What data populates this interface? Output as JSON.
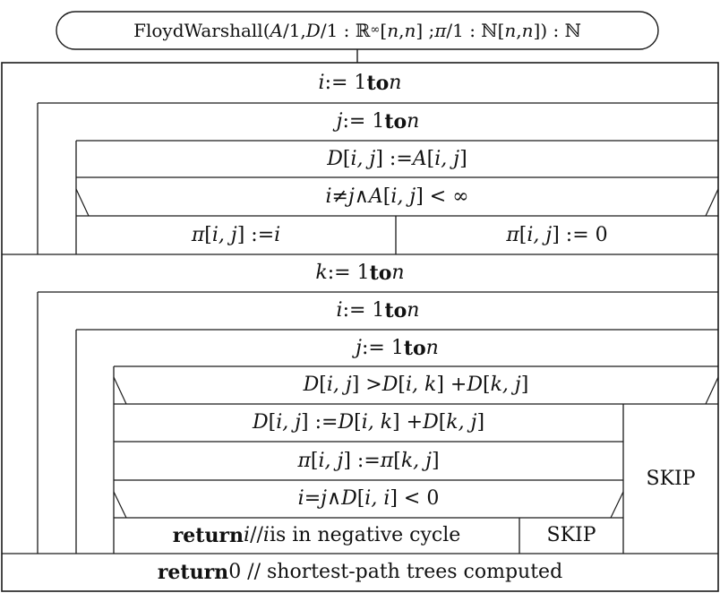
{
  "colors": {
    "line": "#1b1b1b",
    "background": "#ffffff",
    "text": "#111111"
  },
  "signature": {
    "segments": [
      {
        "t": "FloydWarshall(",
        "s": "plain"
      },
      {
        "t": "A",
        "s": "math"
      },
      {
        "t": "/1, ",
        "s": "plain"
      },
      {
        "t": "D",
        "s": "math"
      },
      {
        "t": "/1 : ℝ",
        "s": "plain"
      },
      {
        "t": "∞",
        "s": "sub"
      },
      {
        "t": "[",
        "s": "plain"
      },
      {
        "t": "n",
        "s": "math"
      },
      {
        "t": ", ",
        "s": "plain"
      },
      {
        "t": "n",
        "s": "math"
      },
      {
        "t": "] ; ",
        "s": "plain"
      },
      {
        "t": "π",
        "s": "math"
      },
      {
        "t": "/1 : ℕ[",
        "s": "plain"
      },
      {
        "t": "n",
        "s": "math"
      },
      {
        "t": ", ",
        "s": "plain"
      },
      {
        "t": "n",
        "s": "math"
      },
      {
        "t": "]) : ℕ",
        "s": "plain"
      }
    ]
  },
  "cells": {
    "loop_i_1": {
      "segments": [
        {
          "t": "i",
          "s": "math"
        },
        {
          "t": " := 1 ",
          "s": "plain"
        },
        {
          "t": "to",
          "s": "kw"
        },
        {
          "t": " ",
          "s": "plain"
        },
        {
          "t": "n",
          "s": "math"
        }
      ]
    },
    "loop_j_1": {
      "segments": [
        {
          "t": "j",
          "s": "math"
        },
        {
          "t": " := 1 ",
          "s": "plain"
        },
        {
          "t": "to",
          "s": "kw"
        },
        {
          "t": " ",
          "s": "plain"
        },
        {
          "t": "n",
          "s": "math"
        }
      ]
    },
    "assign_d_a": {
      "segments": [
        {
          "t": "D",
          "s": "math"
        },
        {
          "t": "[",
          "s": "plain"
        },
        {
          "t": "i, j",
          "s": "math"
        },
        {
          "t": "] := ",
          "s": "plain"
        },
        {
          "t": "A",
          "s": "math"
        },
        {
          "t": "[",
          "s": "plain"
        },
        {
          "t": "i, j",
          "s": "math"
        },
        {
          "t": "]",
          "s": "plain"
        }
      ]
    },
    "cond_init": {
      "segments": [
        {
          "t": "i",
          "s": "math"
        },
        {
          "t": " ≠ ",
          "s": "plain"
        },
        {
          "t": "j",
          "s": "math"
        },
        {
          "t": " ∧ ",
          "s": "plain"
        },
        {
          "t": "A",
          "s": "math"
        },
        {
          "t": "[",
          "s": "plain"
        },
        {
          "t": "i, j",
          "s": "math"
        },
        {
          "t": "] < ∞",
          "s": "plain"
        }
      ]
    },
    "pi_set_i": {
      "segments": [
        {
          "t": "π",
          "s": "math"
        },
        {
          "t": "[",
          "s": "plain"
        },
        {
          "t": "i, j",
          "s": "math"
        },
        {
          "t": "] := ",
          "s": "plain"
        },
        {
          "t": "i",
          "s": "math"
        }
      ]
    },
    "pi_set_0": {
      "segments": [
        {
          "t": "π",
          "s": "math"
        },
        {
          "t": "[",
          "s": "plain"
        },
        {
          "t": "i, j",
          "s": "math"
        },
        {
          "t": "] := 0",
          "s": "plain"
        }
      ]
    },
    "loop_k": {
      "segments": [
        {
          "t": "k",
          "s": "math"
        },
        {
          "t": " := 1 ",
          "s": "plain"
        },
        {
          "t": "to",
          "s": "kw"
        },
        {
          "t": " ",
          "s": "plain"
        },
        {
          "t": "n",
          "s": "math"
        }
      ]
    },
    "loop_i_2": {
      "segments": [
        {
          "t": "i",
          "s": "math"
        },
        {
          "t": " := 1 ",
          "s": "plain"
        },
        {
          "t": "to",
          "s": "kw"
        },
        {
          "t": " ",
          "s": "plain"
        },
        {
          "t": "n",
          "s": "math"
        }
      ]
    },
    "loop_j_2": {
      "segments": [
        {
          "t": "j",
          "s": "math"
        },
        {
          "t": " := 1 ",
          "s": "plain"
        },
        {
          "t": "to",
          "s": "kw"
        },
        {
          "t": " ",
          "s": "plain"
        },
        {
          "t": "n",
          "s": "math"
        }
      ]
    },
    "cond_relax": {
      "segments": [
        {
          "t": "D",
          "s": "math"
        },
        {
          "t": "[",
          "s": "plain"
        },
        {
          "t": "i, j",
          "s": "math"
        },
        {
          "t": "] > ",
          "s": "plain"
        },
        {
          "t": "D",
          "s": "math"
        },
        {
          "t": "[",
          "s": "plain"
        },
        {
          "t": "i, k",
          "s": "math"
        },
        {
          "t": "] + ",
          "s": "plain"
        },
        {
          "t": "D",
          "s": "math"
        },
        {
          "t": "[",
          "s": "plain"
        },
        {
          "t": "k, j",
          "s": "math"
        },
        {
          "t": "]",
          "s": "plain"
        }
      ]
    },
    "assign_relax": {
      "segments": [
        {
          "t": "D",
          "s": "math"
        },
        {
          "t": "[",
          "s": "plain"
        },
        {
          "t": "i, j",
          "s": "math"
        },
        {
          "t": "] := ",
          "s": "plain"
        },
        {
          "t": "D",
          "s": "math"
        },
        {
          "t": "[",
          "s": "plain"
        },
        {
          "t": "i, k",
          "s": "math"
        },
        {
          "t": "] + ",
          "s": "plain"
        },
        {
          "t": "D",
          "s": "math"
        },
        {
          "t": "[",
          "s": "plain"
        },
        {
          "t": "k, j",
          "s": "math"
        },
        {
          "t": "]",
          "s": "plain"
        }
      ]
    },
    "assign_pi": {
      "segments": [
        {
          "t": "π",
          "s": "math"
        },
        {
          "t": "[",
          "s": "plain"
        },
        {
          "t": "i, j",
          "s": "math"
        },
        {
          "t": "] := ",
          "s": "plain"
        },
        {
          "t": "π",
          "s": "math"
        },
        {
          "t": "[",
          "s": "plain"
        },
        {
          "t": "k, j",
          "s": "math"
        },
        {
          "t": "]",
          "s": "plain"
        }
      ]
    },
    "cond_negcycle": {
      "segments": [
        {
          "t": "i",
          "s": "math"
        },
        {
          "t": " = ",
          "s": "plain"
        },
        {
          "t": "j",
          "s": "math"
        },
        {
          "t": " ∧ ",
          "s": "plain"
        },
        {
          "t": "D",
          "s": "math"
        },
        {
          "t": "[",
          "s": "plain"
        },
        {
          "t": "i, i",
          "s": "math"
        },
        {
          "t": "] < 0",
          "s": "plain"
        }
      ]
    },
    "return_i": {
      "segments": [
        {
          "t": "return ",
          "s": "kw"
        },
        {
          "t": "i",
          "s": "math"
        },
        {
          "t": " // ",
          "s": "plain"
        },
        {
          "t": "i",
          "s": "math"
        },
        {
          "t": " is in negative cycle",
          "s": "plain"
        }
      ]
    },
    "skip_inner": {
      "segments": [
        {
          "t": "SKIP",
          "s": "plain"
        }
      ]
    },
    "skip_outer": {
      "segments": [
        {
          "t": "SKIP",
          "s": "plain"
        }
      ]
    },
    "return_0": {
      "segments": [
        {
          "t": "return ",
          "s": "kw"
        },
        {
          "t": "0 // shortest-path trees computed",
          "s": "plain"
        }
      ]
    }
  }
}
